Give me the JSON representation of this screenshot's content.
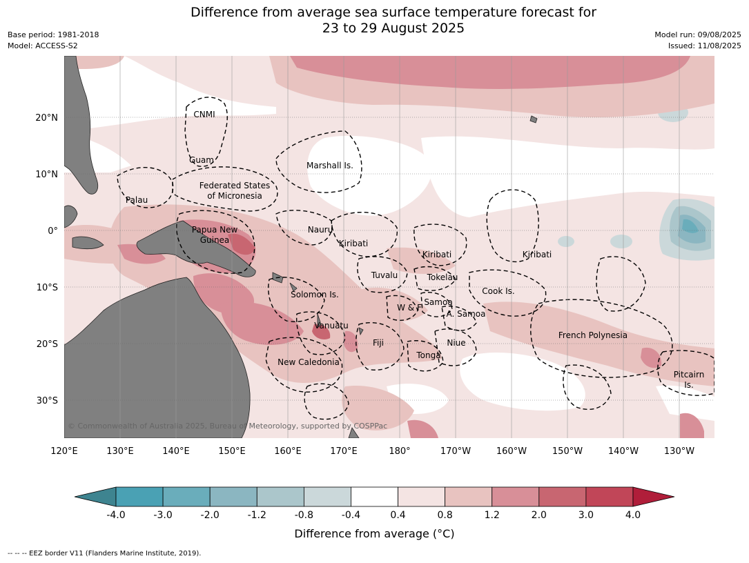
{
  "title_line1": "Difference from average sea surface temperature forecast for",
  "title_line2": "23 to 29 August 2025",
  "meta": {
    "base_period": "Base period: 1981-2018",
    "model": "Model: ACCESS-S2",
    "model_run": "Model run: 09/08/2025",
    "issued": "Issued: 11/08/2025"
  },
  "map": {
    "lon_range": [
      120,
      236
    ],
    "lat_range": [
      -37,
      31
    ],
    "lon_ticks": [
      "120°E",
      "130°E",
      "140°E",
      "150°E",
      "160°E",
      "170°E",
      "180°",
      "170°W",
      "160°W",
      "150°W",
      "140°W",
      "130°W"
    ],
    "lat_ticks": [
      "20°N",
      "10°N",
      "0°",
      "10°S",
      "20°S",
      "30°S"
    ],
    "land_color": "#808080",
    "copyright": "© Commonwealth of Australia 2025, Bureau of Meteorology, supported by COSPPac",
    "regions": [
      {
        "label": "CNMI"
      },
      {
        "label": "Guam"
      },
      {
        "label": "Marshall Is."
      },
      {
        "label": "Palau"
      },
      {
        "label": "Federated States"
      },
      {
        "label": "of Micronesia"
      },
      {
        "label": "Papua New"
      },
      {
        "label": "Guinea"
      },
      {
        "label": "Nauru"
      },
      {
        "label": "Kiribati"
      },
      {
        "label": "Kiribati"
      },
      {
        "label": "Kiribati"
      },
      {
        "label": "Tuvalu"
      },
      {
        "label": "Tokelau"
      },
      {
        "label": "Solomon Is."
      },
      {
        "label": "Cook Is."
      },
      {
        "label": "Samoa"
      },
      {
        "label": "W & F"
      },
      {
        "label": "A. Samoa"
      },
      {
        "label": "Vanuatu"
      },
      {
        "label": "Fiji"
      },
      {
        "label": "Niue"
      },
      {
        "label": "French Polynesia"
      },
      {
        "label": "Tonga"
      },
      {
        "label": "New Caledonia"
      },
      {
        "label": "Pitcairn"
      },
      {
        "label": "Is."
      }
    ]
  },
  "colorbar": {
    "label": "Difference from average (°C)",
    "ticks": [
      "-4.0",
      "-3.0",
      "-2.0",
      "-1.2",
      "-0.8",
      "-0.4",
      "0.4",
      "0.8",
      "1.2",
      "2.0",
      "3.0",
      "4.0"
    ],
    "colors": [
      "#3e8490",
      "#4aa1b4",
      "#6aadbb",
      "#8bb6c1",
      "#abc6cb",
      "#cbd8da",
      "#ffffff",
      "#f4e4e3",
      "#e8c3c0",
      "#d88f98",
      "#c86671",
      "#c14658",
      "#b01e3a"
    ]
  },
  "footer": "--  --  -- EEZ border V11 (Flanders Marine Institute, 2019)."
}
